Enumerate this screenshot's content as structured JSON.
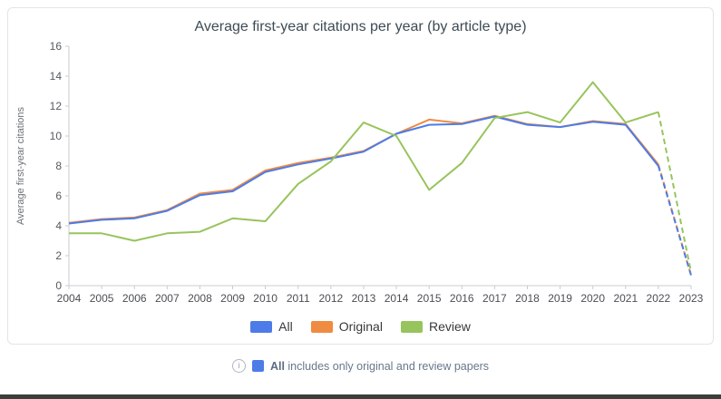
{
  "chart_data": {
    "type": "line",
    "title": "Average first-year citations per year (by article type)",
    "xlabel": "",
    "ylabel": "Average first-year citations",
    "ylim": [
      0,
      16
    ],
    "ytick_step": 2,
    "grid": false,
    "legend_position": "bottom",
    "dashed_from_index": 18,
    "categories": [
      "2004",
      "2005",
      "2006",
      "2007",
      "2008",
      "2009",
      "2010",
      "2011",
      "2012",
      "2013",
      "2014",
      "2015",
      "2016",
      "2017",
      "2018",
      "2019",
      "2020",
      "2021",
      "2022",
      "2023"
    ],
    "series": [
      {
        "name": "All",
        "color": "#4d7ce8",
        "values": [
          4.15,
          4.4,
          4.5,
          5.0,
          6.05,
          6.3,
          7.6,
          8.1,
          8.5,
          8.95,
          10.15,
          10.75,
          10.8,
          11.3,
          10.75,
          10.6,
          10.95,
          10.75,
          8.0,
          0.7
        ]
      },
      {
        "name": "Original",
        "color": "#ef8b43",
        "values": [
          4.2,
          4.45,
          4.55,
          5.05,
          6.15,
          6.4,
          7.7,
          8.2,
          8.55,
          9.0,
          10.15,
          11.1,
          10.85,
          11.35,
          10.8,
          10.6,
          11.0,
          10.8,
          8.1,
          0.7
        ]
      },
      {
        "name": "Review",
        "color": "#97c45c",
        "values": [
          3.5,
          3.5,
          3.0,
          3.5,
          3.6,
          4.5,
          4.3,
          6.8,
          8.3,
          10.9,
          10.0,
          6.4,
          8.2,
          11.2,
          11.6,
          10.9,
          13.6,
          10.9,
          11.6,
          0.9
        ]
      }
    ]
  },
  "footer": {
    "info_glyph": "i",
    "term": "All",
    "text": "includes only original and review papers",
    "swatch_color": "#4d7ce8"
  }
}
